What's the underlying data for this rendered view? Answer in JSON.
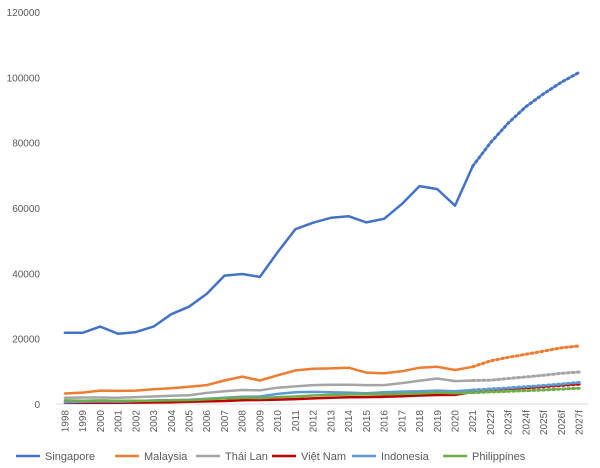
{
  "chart_data": {
    "type": "line",
    "title": "",
    "xlabel": "",
    "ylabel": "",
    "ylim": [
      0,
      120000
    ],
    "y_ticks": [
      0,
      20000,
      40000,
      60000,
      80000,
      100000,
      120000
    ],
    "y_tick_labels": [
      "0",
      "20000",
      "40000",
      "60000",
      "80000",
      "100000",
      "120000"
    ],
    "grid": false,
    "legend_position": "bottom",
    "categories": [
      "1998",
      "1999",
      "2000",
      "2001",
      "2002",
      "2003",
      "2004",
      "2005",
      "2006",
      "2007",
      "2008",
      "2009",
      "2010",
      "2011",
      "2012",
      "2013",
      "2014",
      "2015",
      "2016",
      "2017",
      "2018",
      "2019",
      "2020",
      "2021",
      "2022f",
      "2023f",
      "2024f",
      "2025f",
      "2026f",
      "2027f"
    ],
    "forecast_start_index": 23,
    "series": [
      {
        "name": "Singapore",
        "color": "#4472C4",
        "width": 2.5,
        "values": [
          21800,
          21800,
          23700,
          21500,
          22000,
          23700,
          27500,
          29800,
          33700,
          39300,
          39800,
          38900,
          46500,
          53500,
          55500,
          57000,
          57500,
          55600,
          56700,
          61200,
          66700,
          65800,
          60700,
          72800,
          80000,
          86000,
          91000,
          95000,
          98500,
          101500
        ]
      },
      {
        "name": "Malaysia",
        "color": "#ED7D31",
        "width": 2.5,
        "values": [
          3200,
          3500,
          4100,
          4000,
          4100,
          4500,
          4800,
          5300,
          5800,
          7200,
          8400,
          7200,
          8800,
          10300,
          10800,
          10900,
          11100,
          9600,
          9400,
          10000,
          11100,
          11400,
          10400,
          11400,
          13200,
          14300,
          15200,
          16200,
          17200,
          17800
        ]
      },
      {
        "name": "Thái Lan",
        "color": "#A5A5A5",
        "width": 2.5,
        "values": [
          1900,
          2000,
          2000,
          1900,
          2100,
          2300,
          2500,
          2700,
          3400,
          3900,
          4300,
          4200,
          5000,
          5400,
          5800,
          5900,
          5900,
          5800,
          5800,
          6400,
          7100,
          7800,
          7000,
          7200,
          7300,
          7800,
          8300,
          8800,
          9400,
          9800
        ]
      },
      {
        "name": "Việt Nam",
        "color": "#C00000",
        "width": 2.5,
        "values": [
          350,
          360,
          390,
          410,
          440,
          490,
          560,
          690,
          800,
          920,
          1150,
          1230,
          1340,
          1500,
          1700,
          1910,
          2050,
          2100,
          2200,
          2400,
          2600,
          2750,
          2800,
          3700,
          4100,
          4500,
          4900,
          5300,
          5700,
          6100
        ]
      },
      {
        "name": "Indonesia",
        "color": "#5B9BD5",
        "width": 2.5,
        "values": [
          500,
          700,
          800,
          750,
          900,
          1100,
          1200,
          1300,
          1600,
          1900,
          2200,
          2300,
          3100,
          3600,
          3700,
          3600,
          3500,
          3300,
          3600,
          3800,
          3900,
          4100,
          3900,
          4300,
          4600,
          4900,
          5300,
          5700,
          6100,
          6600
        ]
      },
      {
        "name": "Philippines",
        "color": "#70AD47",
        "width": 2.5,
        "values": [
          1100,
          1000,
          1100,
          1000,
          1000,
          1000,
          1100,
          1200,
          1400,
          1700,
          1900,
          1800,
          2100,
          2300,
          2600,
          2800,
          2900,
          3000,
          3000,
          3100,
          3200,
          3500,
          3300,
          3500,
          3700,
          3900,
          4100,
          4300,
          4600,
          4800
        ]
      }
    ]
  }
}
